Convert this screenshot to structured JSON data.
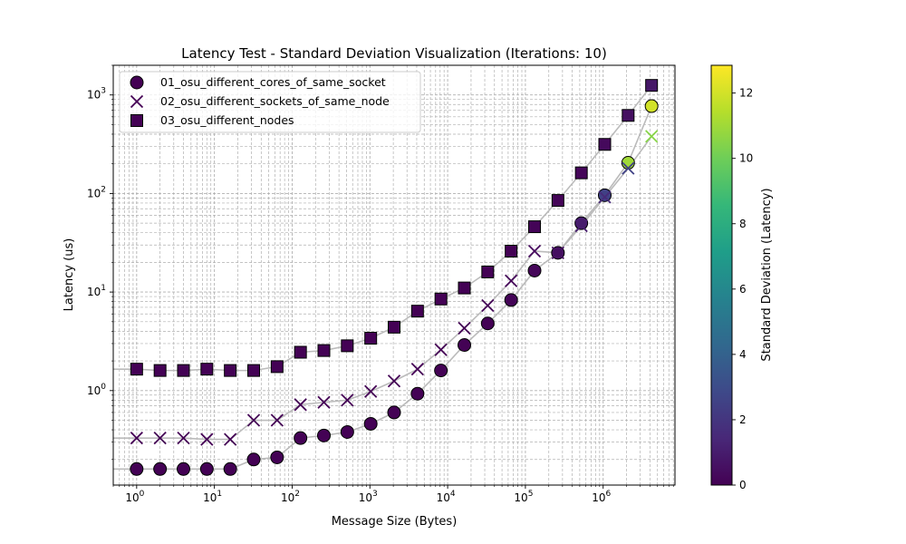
{
  "chart_data": {
    "type": "scatter",
    "title": "Latency Test - Standard Deviation Visualization (Iterations: 10)",
    "xlabel": "Message Size (Bytes)",
    "ylabel": "Latency (us)",
    "xscale": "log",
    "yscale": "log",
    "xlim": [
      0.5,
      8388608
    ],
    "ylim": [
      0.11,
      2000
    ],
    "grid": true,
    "legend_position": "top-left",
    "x_tick_labels": [
      "10^0",
      "10^1",
      "10^2",
      "10^3",
      "10^4",
      "10^5",
      "10^6"
    ],
    "y_tick_labels": [
      "10^0",
      "10^1",
      "10^2",
      "10^3"
    ],
    "x": [
      1,
      2,
      4,
      8,
      16,
      32,
      64,
      128,
      256,
      512,
      1024,
      2048,
      4096,
      8192,
      16384,
      32768,
      65536,
      131072,
      262144,
      524288,
      1048576,
      2097152,
      4194304
    ],
    "series": [
      {
        "name": "01_osu_different_cores_of_same_socket",
        "marker": "circle",
        "values": [
          0.16,
          0.16,
          0.16,
          0.16,
          0.16,
          0.2,
          0.21,
          0.33,
          0.35,
          0.38,
          0.46,
          0.6,
          0.93,
          1.6,
          2.9,
          4.8,
          8.3,
          16.5,
          25,
          50,
          96,
          205,
          770
        ],
        "std_dev": [
          0.05,
          0.05,
          0.05,
          0.05,
          0.05,
          0.05,
          0.05,
          0.05,
          0.05,
          0.05,
          0.05,
          0.05,
          0.05,
          0.05,
          0.05,
          0.05,
          0.1,
          0.2,
          0.5,
          1.0,
          2.5,
          11.0,
          12.0
        ]
      },
      {
        "name": "02_osu_different_sockets_of_same_node",
        "marker": "x",
        "values": [
          0.33,
          0.33,
          0.33,
          0.32,
          0.32,
          0.5,
          0.5,
          0.72,
          0.76,
          0.8,
          0.98,
          1.25,
          1.65,
          2.6,
          4.3,
          7.3,
          13,
          26,
          25,
          47,
          92,
          180,
          380
        ],
        "std_dev": [
          0.05,
          0.05,
          0.05,
          0.05,
          0.05,
          0.05,
          0.05,
          0.05,
          0.05,
          0.05,
          0.05,
          0.05,
          0.05,
          0.05,
          0.05,
          0.1,
          0.2,
          0.3,
          0.5,
          1.0,
          1.5,
          2.5,
          10.5
        ]
      },
      {
        "name": "03_osu_different_nodes",
        "marker": "square",
        "values": [
          1.65,
          1.6,
          1.6,
          1.65,
          1.6,
          1.6,
          1.75,
          2.45,
          2.55,
          2.85,
          3.4,
          4.4,
          6.4,
          8.5,
          11,
          16,
          26,
          46,
          85,
          162,
          315,
          620,
          1250
        ],
        "std_dev": [
          0.05,
          0.05,
          0.05,
          0.05,
          0.05,
          0.05,
          0.05,
          0.05,
          0.05,
          0.05,
          0.05,
          0.05,
          0.05,
          0.05,
          0.05,
          0.05,
          0.05,
          0.1,
          0.1,
          0.2,
          0.3,
          0.5,
          0.8
        ]
      }
    ],
    "colorbar": {
      "label": "Standard Deviation (Latency)",
      "colormap": "viridis",
      "min": 0,
      "max": 12.85,
      "tick_values": [
        0,
        2,
        4,
        6,
        8,
        10,
        12
      ],
      "tick_labels": [
        "0",
        "2",
        "4",
        "6",
        "8",
        "10",
        "12"
      ]
    },
    "colors": {
      "viridis_stops": [
        "#440154",
        "#482878",
        "#3e4989",
        "#31688e",
        "#26828e",
        "#1f9e89",
        "#35b779",
        "#6ece58",
        "#b5de2b",
        "#fde725"
      ],
      "connector_line": "#bbbbbb",
      "grid_line": "#b0b0b0"
    }
  }
}
